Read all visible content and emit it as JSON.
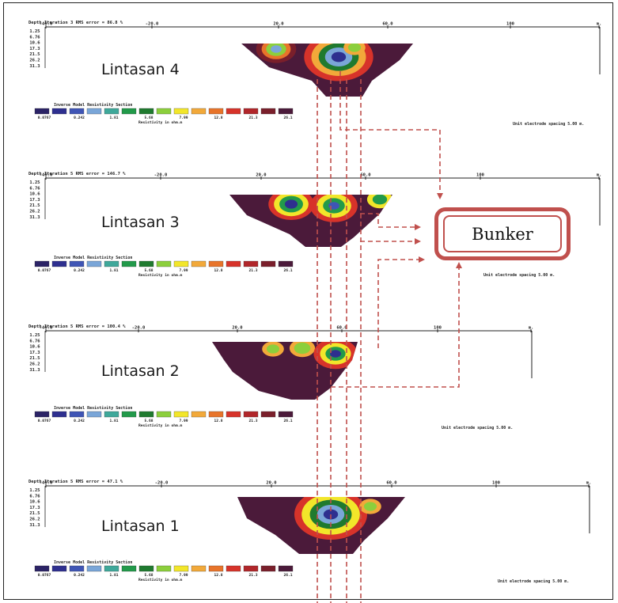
{
  "legend_colors": [
    "#2b2366",
    "#2e2f8f",
    "#3f55b5",
    "#7aa6d8",
    "#3fa89a",
    "#229a4a",
    "#1f7a2f",
    "#8ccf3c",
    "#f2e62a",
    "#f2a93a",
    "#e8742a",
    "#d7332a",
    "#b1262a",
    "#7a1f2b",
    "#4b1a3a"
  ],
  "profiles": [
    {
      "name": "Lintasan 4",
      "header": "Depth  Iteration 3 RMS error = 86.8 %",
      "ticks": [
        "-40.0",
        "-20.0",
        "20.0",
        "60.0",
        "100",
        "m."
      ],
      "depths": [
        "1.25",
        "6.76",
        "10.6",
        "17.3",
        "21.5",
        "26.2",
        "31.3"
      ],
      "legend_title": "Inverse Model Resistivity Section",
      "legend_values": [
        "0.0767",
        "0.242",
        "1.81",
        "5.68",
        "7.99",
        "12.8",
        "21.3",
        "26.1"
      ],
      "legend_caption": "Resistivity in ohm.m",
      "spacing": "Unit electrode spacing 5.00 m."
    },
    {
      "name": "Lintasan 3",
      "header": "Depth  Iteration 5 RMS error = 146.7 %",
      "ticks": [
        "-40.0",
        "-20.0",
        "20.0",
        "60.0",
        "100",
        "m."
      ],
      "depths": [
        "1.25",
        "6.76",
        "10.6",
        "17.3",
        "21.5",
        "26.2",
        "31.3"
      ],
      "legend_title": "Inverse Model Resistivity Section",
      "legend_values": [
        "0.0767",
        "0.242",
        "1.81",
        "5.68",
        "7.99",
        "12.8",
        "21.3",
        "26.1"
      ],
      "legend_caption": "Resistivity in ohm.m",
      "spacing": "Unit electrode spacing 5.00 m."
    },
    {
      "name": "Lintasan 2",
      "header": "Depth  Iteration 5 RMS error = 100.4 %",
      "ticks": [
        "-40.0",
        "-20.0",
        "20.0",
        "60.0",
        "100",
        "m."
      ],
      "depths": [
        "1.25",
        "6.76",
        "10.6",
        "17.3",
        "21.5",
        "26.2",
        "31.3"
      ],
      "legend_title": "Inverse Model Resistivity Section",
      "legend_values": [
        "0.0767",
        "0.242",
        "1.81",
        "5.68",
        "7.99",
        "12.8",
        "21.3",
        "26.1"
      ],
      "legend_caption": "Resistivity in ohm.m",
      "spacing": "Unit electrode spacing 5.00 m."
    },
    {
      "name": "Lintasan 1",
      "header": "Depth  Iteration 5 RMS error = 47.1 %",
      "ticks": [
        "-40.0",
        "-20.0",
        "20.0",
        "60.0",
        "100",
        "m."
      ],
      "depths": [
        "1.25",
        "6.76",
        "10.6",
        "17.3",
        "21.5",
        "26.2",
        "31.3"
      ],
      "legend_title": "Inverse Model Resistivity Section",
      "legend_values": [
        "0.0767",
        "0.242",
        "1.81",
        "5.68",
        "7.99",
        "12.8",
        "21.3",
        "26.1"
      ],
      "legend_caption": "Resistivity in ohm.m",
      "spacing": "Unit electrode spacing 5.00 m."
    }
  ],
  "bunker_label": "Bunker",
  "arrow_color": "#c0504d"
}
